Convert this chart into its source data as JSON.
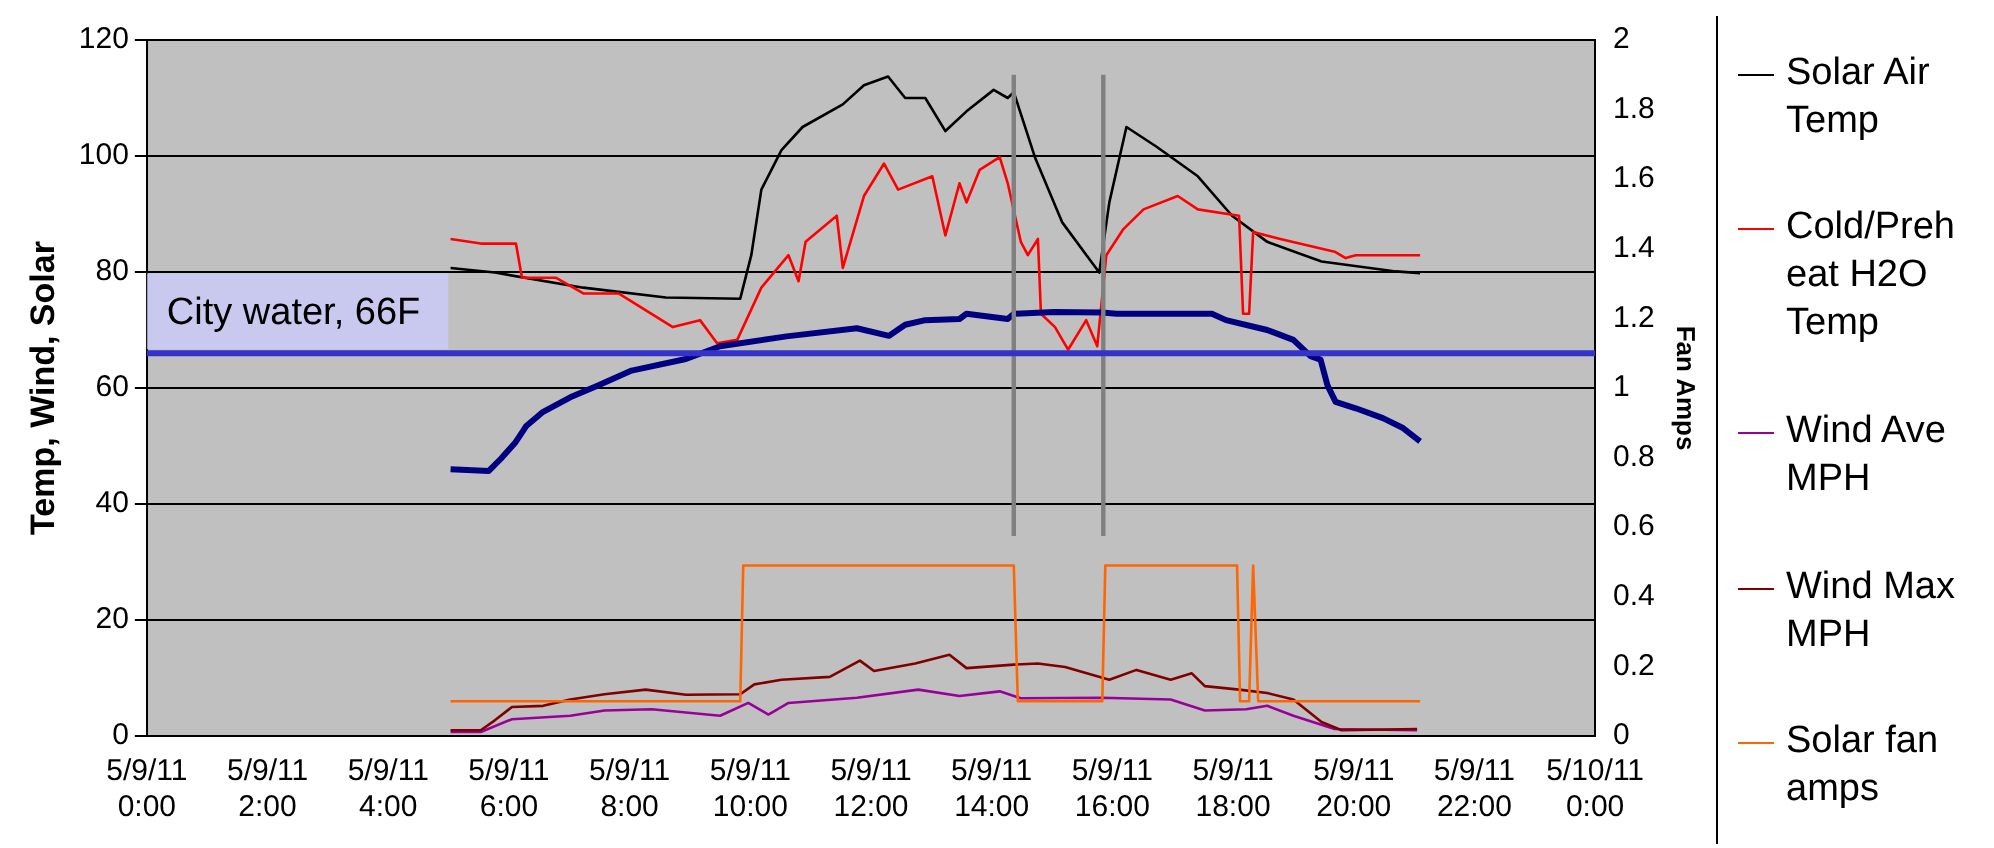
{
  "chart_data": {
    "type": "line",
    "ylabel": "Temp, Wind, Solar",
    "y2label": "Fan Amps",
    "xlim": [
      "--05-09T00:00",
      "--05-10T00:00"
    ],
    "xticks": [
      {
        "value": "--05-09T00:00",
        "label": "5/9/11 0:00"
      },
      {
        "value": "--05-09T02:00",
        "label": "5/9/11 2:00"
      },
      {
        "value": "--05-09T04:00",
        "label": "5/9/11 4:00"
      },
      {
        "value": "--05-09T06:00",
        "label": "5/9/11 6:00"
      },
      {
        "value": "--05-09T08:00",
        "label": "5/9/11 8:00"
      },
      {
        "value": "--05-09T10:00",
        "label": "5/9/11 10:00"
      },
      {
        "value": "--05-09T12:00",
        "label": "5/9/11 12:00"
      },
      {
        "value": "--05-09T14:00",
        "label": "5/9/11 14:00"
      },
      {
        "value": "--05-09T16:00",
        "label": "5/9/11 16:00"
      },
      {
        "value": "--05-09T18:00",
        "label": "5/9/11 18:00"
      },
      {
        "value": "--05-09T20:00",
        "label": "5/9/11 20:00"
      },
      {
        "value": "--05-09T22:00",
        "label": "5/9/11 22:00"
      },
      {
        "value": "--05-10T00:00",
        "label": "5/10/11 0:00"
      }
    ],
    "ylim": [
      0,
      120
    ],
    "yticks": [
      0,
      20,
      40,
      60,
      80,
      100,
      120
    ],
    "y2lim": [
      0,
      2
    ],
    "y2ticks": [
      0,
      0.2,
      0.4,
      0.6,
      0.8,
      1,
      1.2,
      1.4,
      1.6,
      1.8,
      2
    ],
    "grid": "y",
    "legend": "right",
    "marker": "none",
    "line_style": "solid",
    "ref_lines": [
      {
        "axis": "y",
        "value": 66,
        "label": "City water, 66F",
        "color": "#3333cc"
      }
    ],
    "series": [
      {
        "name": "Solar Air Temp",
        "color": "#000000",
        "x": [
          "--05-09T05:02",
          "--05-09T05:46",
          "--05-09T07:14",
          "--05-09T08:36",
          "--05-09T09:50",
          "--05-09T10:01",
          "--05-09T10:11",
          "--05-09T10:31",
          "--05-09T10:52",
          "--05-09T11:32",
          "--05-09T11:53",
          "--05-09T12:17",
          "--05-09T12:34",
          "--05-09T12:54",
          "--05-09T13:14",
          "--05-09T13:35",
          "--05-09T14:02",
          "--05-09T14:16",
          "--05-09T14:22",
          "--05-09T14:43",
          "--05-09T15:10",
          "--05-09T15:47",
          "--05-09T15:57",
          "--05-09T16:14",
          "--05-09T16:44",
          "--05-09T17:25",
          "--05-09T17:59",
          "--05-09T18:34",
          "--05-09T19:28",
          "--05-09T20:42",
          "--05-09T21:06"
        ],
        "values": [
          80.7,
          79.9,
          77.3,
          75.6,
          75.4,
          82.9,
          94.2,
          101,
          105,
          108.9,
          112.2,
          113.7,
          110,
          110,
          104.3,
          107.7,
          111.4,
          110,
          111,
          99.8,
          88.6,
          79.9,
          92,
          105,
          101.6,
          96.5,
          89.7,
          85.2,
          81.8,
          80.1,
          79.8
        ]
      },
      {
        "name": "Cold/Preheat H2O Temp",
        "color": "#ff0000",
        "x": [
          "--05-09T05:02",
          "--05-09T05:32",
          "--05-09T06:07",
          "--05-09T06:13",
          "--05-09T06:47",
          "--05-09T07:14",
          "--05-09T07:49",
          "--05-09T08:43",
          "--05-09T09:10",
          "--05-09T09:27",
          "--05-09T09:47",
          "--05-09T10:11",
          "--05-09T10:38",
          "--05-09T10:48",
          "--05-09T10:55",
          "--05-09T11:26",
          "--05-09T11:32",
          "--05-09T11:53",
          "--05-09T12:13",
          "--05-09T12:27",
          "--05-09T13:01",
          "--05-09T13:14",
          "--05-09T13:28",
          "--05-09T13:35",
          "--05-09T13:48",
          "--05-09T14:08",
          "--05-09T14:16",
          "--05-09T14:29",
          "--05-09T14:36",
          "--05-09T14:46",
          "--05-09T14:49",
          "--05-09T15:03",
          "--05-09T15:16",
          "--05-09T15:34",
          "--05-09T15:45",
          "--05-09T15:54",
          "--05-09T16:11",
          "--05-09T16:31",
          "--05-09T17:05",
          "--05-09T17:25",
          "--05-09T18:06",
          "--05-09T18:10",
          "--05-09T18:16",
          "--05-09T18:20",
          "--05-09T18:47",
          "--05-09T19:41",
          "--05-09T19:52",
          "--05-09T20:02",
          "--05-09T21:06"
        ],
        "values": [
          85.7,
          84.9,
          84.9,
          79,
          79,
          76.3,
          76.3,
          70.5,
          71.7,
          67.7,
          68.3,
          77.3,
          82.9,
          78.4,
          85.2,
          89.7,
          80.7,
          93.1,
          98.7,
          94.2,
          96.5,
          86.3,
          95.3,
          92,
          97.6,
          99.8,
          95.3,
          85.2,
          82.9,
          85.7,
          72.8,
          70.5,
          66.6,
          71.7,
          67.2,
          82.9,
          87.4,
          90.8,
          93.1,
          90.8,
          89.7,
          72.8,
          72.8,
          86.9,
          85.7,
          83.5,
          82.4,
          82.9,
          82.9
        ]
      },
      {
        "name": "Wind Ave MPH",
        "color": "#990099",
        "x": [
          "--05-09T05:02",
          "--05-09T05:32",
          "--05-09T06:03",
          "--05-09T07:01",
          "--05-09T07:35",
          "--05-09T08:22",
          "--05-09T09:30",
          "--05-09T09:58",
          "--05-09T10:18",
          "--05-09T10:38",
          "--05-09T11:46",
          "--05-09T12:47",
          "--05-09T13:28",
          "--05-09T14:08",
          "--05-09T14:29",
          "--05-09T15:50",
          "--05-09T16:58",
          "--05-09T17:32",
          "--05-09T18:13",
          "--05-09T18:34",
          "--05-09T19:00",
          "--05-09T19:41",
          "--05-09T21:03"
        ],
        "values": [
          0.7,
          0.7,
          2.9,
          3.5,
          4.4,
          4.6,
          3.5,
          5.7,
          3.7,
          5.7,
          6.6,
          8,
          6.9,
          7.7,
          6.5,
          6.6,
          6.3,
          4.4,
          4.6,
          5.2,
          3.5,
          1.2,
          1
        ]
      },
      {
        "name": "Wind Max MPH",
        "color": "#800000",
        "x": [
          "--05-09T05:02",
          "--05-09T05:32",
          "--05-09T05:46",
          "--05-09T06:03",
          "--05-09T06:34",
          "--05-09T07:01",
          "--05-09T07:35",
          "--05-09T08:16",
          "--05-09T08:56",
          "--05-09T09:50",
          "--05-09T10:04",
          "--05-09T10:31",
          "--05-09T11:19",
          "--05-09T11:49",
          "--05-09T12:03",
          "--05-09T12:44",
          "--05-09T13:18",
          "--05-09T13:35",
          "--05-09T14:22",
          "--05-09T14:46",
          "--05-09T15:13",
          "--05-09T15:57",
          "--05-09T16:24",
          "--05-09T16:58",
          "--05-09T17:19",
          "--05-09T17:32",
          "--05-09T18:06",
          "--05-09T18:34",
          "--05-09T19:00",
          "--05-09T19:28",
          "--05-09T19:48",
          "--05-09T21:03"
        ],
        "values": [
          1,
          1,
          2.7,
          5,
          5.2,
          6.3,
          7.2,
          8,
          7.1,
          7.2,
          8.9,
          9.7,
          10.2,
          13,
          11.2,
          12.5,
          14,
          11.7,
          12.3,
          12.5,
          11.9,
          9.7,
          11.4,
          9.7,
          10.8,
          8.6,
          8,
          7.4,
          6.3,
          2.4,
          1,
          1.2
        ]
      },
      {
        "name": "Solar fan amps",
        "color": "#ff6600",
        "axis": "y2",
        "x": [
          "--05-09T05:02",
          "--05-09T09:50",
          "--05-09T09:53",
          "--05-09T14:22",
          "--05-09T14:26",
          "--05-09T15:50",
          "--05-09T15:53",
          "--05-09T18:04",
          "--05-09T18:07",
          "--05-09T18:16",
          "--05-09T18:20",
          "--05-09T18:25",
          "--05-09T21:06"
        ],
        "values": [
          0.1,
          0.1,
          0.49,
          0.49,
          0.1,
          0.1,
          0.49,
          0.49,
          0.1,
          0.1,
          0.49,
          0.1,
          0.1
        ]
      },
      {
        "color": "#000080",
        "x": [
          "--05-09T05:02",
          "--05-09T05:40",
          "--05-09T05:52",
          "--05-09T06:06",
          "--05-09T06:17",
          "--05-09T06:34",
          "--05-09T07:01",
          "--05-09T07:28",
          "--05-09T08:02",
          "--05-09T08:56",
          "--05-09T09:30",
          "--05-09T10:36",
          "--05-09T11:46",
          "--05-09T12:18",
          "--05-09T12:34",
          "--05-09T12:54",
          "--05-09T13:28",
          "--05-09T13:35",
          "--05-09T14:16",
          "--05-09T14:22",
          "--05-09T15:02",
          "--05-09T15:50",
          "--05-09T16:04",
          "--05-09T17:39",
          "--05-09T17:53",
          "--05-09T18:34",
          "--05-09T19:00",
          "--05-09T19:17",
          "--05-09T19:27",
          "--05-09T19:34",
          "--05-09T19:42",
          "--05-09T20:02",
          "--05-09T20:29",
          "--05-09T20:49",
          "--05-09T21:06"
        ],
        "values": [
          46,
          45.7,
          47.8,
          50.5,
          53.4,
          55.9,
          58.4,
          60.4,
          63,
          65,
          67.2,
          68.9,
          70.3,
          69,
          70.9,
          71.7,
          71.9,
          72.8,
          71.9,
          72.8,
          73.1,
          73,
          72.8,
          72.8,
          71.7,
          70,
          68.3,
          65.5,
          64.9,
          60.4,
          57.6,
          56.5,
          54.8,
          53.1,
          50.8
        ]
      },
      {
        "color": "#808080",
        "x": [
          "--05-09T14:22",
          "--05-09T14:22"
        ],
        "values": [
          34.5,
          114
        ]
      },
      {
        "color": "#808080",
        "x": [
          "--05-09T15:51",
          "--05-09T15:51"
        ],
        "values": [
          34.5,
          114
        ]
      }
    ]
  }
}
